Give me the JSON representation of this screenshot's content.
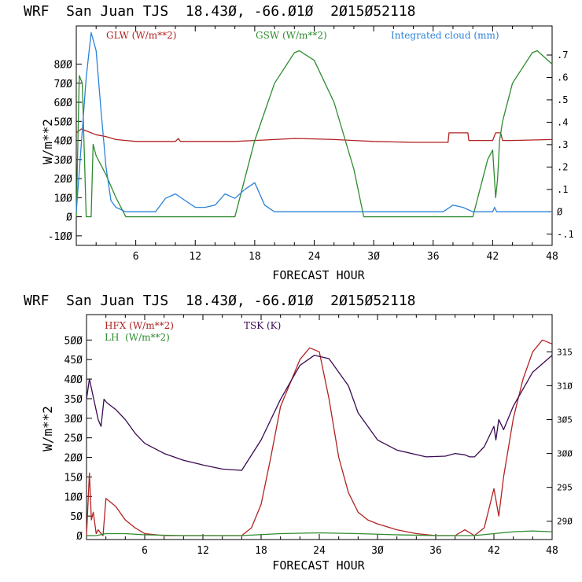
{
  "chart_data": [
    {
      "type": "line",
      "title": "WRF  San Juan TJS  18.43Ø, -66.Ø1Ø  2Ø15Ø52118",
      "xlabel": "FORECAST HOUR",
      "ylabel": "W/m**2",
      "xlim": [
        0,
        48
      ],
      "ylim": [
        -150,
        1000
      ],
      "y2lim": [
        -0.15,
        0.83
      ],
      "x_ticks": [
        6,
        12,
        18,
        24,
        30,
        36,
        42,
        48
      ],
      "x_tick_labels": [
        "6",
        "12",
        "18",
        "24",
        "3Ø",
        "36",
        "42",
        "48"
      ],
      "y_ticks": [
        -100,
        0,
        100,
        200,
        300,
        400,
        500,
        600,
        700,
        800
      ],
      "y_tick_labels": [
        "-1ØØ",
        "Ø",
        "1ØØ",
        "2ØØ",
        "3ØØ",
        "4ØØ",
        "5ØØ",
        "6ØØ",
        "7ØØ",
        "8ØØ"
      ],
      "y2_ticks": [
        -0.1,
        0,
        0.1,
        0.2,
        0.3,
        0.4,
        0.5,
        0.6,
        0.7
      ],
      "y2_tick_labels": [
        "-.1",
        "Ø",
        ".1",
        ".2",
        ".3",
        ".4",
        ".5",
        ".6",
        ".7"
      ],
      "grid": false,
      "legend": "top",
      "series": [
        {
          "name": "GLW (W/m**2)",
          "color": "#b22222",
          "axis": "left",
          "x": [
            0,
            0.5,
            1,
            2,
            3,
            4,
            5,
            6,
            8,
            10,
            10.3,
            10.5,
            12,
            14,
            16,
            18,
            20,
            22,
            24,
            26,
            28,
            30,
            34,
            36,
            37.5,
            37.6,
            39.5,
            39.6,
            40,
            42,
            42.3,
            42.8,
            43,
            44,
            48
          ],
          "y": [
            440,
            460,
            450,
            430,
            420,
            405,
            400,
            395,
            395,
            395,
            410,
            395,
            395,
            395,
            395,
            400,
            405,
            410,
            408,
            405,
            400,
            395,
            390,
            390,
            390,
            440,
            440,
            400,
            400,
            400,
            440,
            440,
            400,
            400,
            405
          ]
        },
        {
          "name": "GSW (W/m**2)",
          "color": "#2e8b2e",
          "axis": "left",
          "x": [
            0,
            0.3,
            0.6,
            1,
            1.5,
            1.7,
            2,
            3,
            4,
            5,
            6,
            16,
            16.5,
            18,
            20,
            22,
            22.5,
            24,
            26,
            28,
            29,
            40,
            40.5,
            41,
            41.5,
            42,
            42.3,
            42.5,
            42.7,
            43,
            44,
            46,
            46.5,
            48
          ],
          "y": [
            0,
            740,
            700,
            0,
            0,
            380,
            320,
            220,
            100,
            0,
            0,
            0,
            100,
            400,
            700,
            860,
            870,
            820,
            600,
            250,
            0,
            0,
            100,
            200,
            300,
            350,
            100,
            200,
            400,
            500,
            700,
            860,
            870,
            800
          ]
        },
        {
          "name": "Integrated cloud (mm)",
          "color": "#2b82d9",
          "axis": "right",
          "x": [
            0,
            0.5,
            1,
            1.5,
            2,
            2.5,
            3,
            3.5,
            4,
            5,
            6,
            8,
            9,
            10,
            11,
            12,
            13,
            14,
            15,
            16,
            17,
            18,
            19,
            20,
            24,
            30,
            37,
            38,
            39,
            40,
            42,
            42.2,
            42.4,
            48
          ],
          "y": [
            0,
            0.3,
            0.6,
            0.8,
            0.72,
            0.45,
            0.2,
            0.05,
            0.02,
            0,
            0,
            0,
            0.06,
            0.08,
            0.05,
            0.02,
            0.02,
            0.03,
            0.08,
            0.06,
            0.1,
            0.13,
            0.03,
            0,
            0,
            0,
            0,
            0.03,
            0.02,
            0,
            0,
            0.02,
            0,
            0
          ]
        }
      ]
    },
    {
      "type": "line",
      "title": "WRF  San Juan TJS  18.43Ø, -66.Ø1Ø  2Ø15Ø52118",
      "xlabel": "FORECAST HOUR",
      "ylabel": "W/m**2",
      "xlim": [
        0,
        48
      ],
      "ylim": [
        -10,
        565
      ],
      "y2lim": [
        287.3,
        320.5
      ],
      "x_ticks": [
        6,
        12,
        18,
        24,
        30,
        36,
        42,
        48
      ],
      "x_tick_labels": [
        "6",
        "12",
        "18",
        "24",
        "3Ø",
        "36",
        "42",
        "48"
      ],
      "y_ticks": [
        0,
        50,
        100,
        150,
        200,
        250,
        300,
        350,
        400,
        450,
        500
      ],
      "y_tick_labels": [
        "Ø",
        "5Ø",
        "1ØØ",
        "15Ø",
        "2ØØ",
        "25Ø",
        "3ØØ",
        "35Ø",
        "4ØØ",
        "45Ø",
        "5ØØ"
      ],
      "y2_ticks": [
        290,
        295,
        300,
        305,
        310,
        315
      ],
      "y2_tick_labels": [
        "29Ø",
        "295",
        "3ØØ",
        "3Ø5",
        "31Ø",
        "315"
      ],
      "grid": false,
      "legend": "top",
      "series": [
        {
          "name": "HFX (W/m**2)",
          "color": "#b22222",
          "axis": "left",
          "x": [
            0,
            0.3,
            0.5,
            0.7,
            1,
            1.2,
            1.5,
            1.7,
            2,
            3,
            4,
            5,
            6,
            8,
            10,
            12,
            14,
            16,
            17,
            18,
            19,
            20,
            22,
            23,
            24,
            25,
            26,
            27,
            28,
            29,
            30,
            32,
            34,
            36,
            38,
            39,
            40,
            41,
            42,
            42.5,
            43,
            44,
            45,
            46,
            47,
            48
          ],
          "y": [
            0,
            160,
            40,
            60,
            5,
            15,
            5,
            0,
            95,
            75,
            40,
            20,
            5,
            0,
            0,
            0,
            0,
            0,
            20,
            80,
            200,
            330,
            450,
            480,
            470,
            350,
            200,
            110,
            60,
            40,
            30,
            15,
            5,
            0,
            0,
            15,
            0,
            20,
            120,
            50,
            150,
            300,
            400,
            470,
            500,
            490
          ]
        },
        {
          "name": "LH  (W/m**2)",
          "color": "#2e8b2e",
          "axis": "left",
          "x": [
            0,
            1,
            2,
            4,
            6,
            10,
            16,
            20,
            24,
            28,
            32,
            36,
            40,
            42,
            44,
            46,
            48
          ],
          "y": [
            0,
            0,
            5,
            5,
            2,
            0,
            0,
            5,
            7,
            5,
            2,
            0,
            0,
            5,
            10,
            12,
            10
          ]
        },
        {
          "name": "TSK (K)",
          "color": "#3a0a52",
          "axis": "right",
          "x": [
            0,
            0.3,
            0.6,
            0.9,
            1.2,
            1.5,
            1.8,
            2.1,
            3,
            4,
            5,
            6,
            8,
            10,
            12,
            14,
            16,
            18,
            20,
            22,
            23.5,
            25,
            27,
            28,
            30,
            32,
            35,
            37,
            38,
            39,
            39.5,
            40,
            41,
            42,
            42.2,
            42.5,
            43,
            44,
            46,
            48
          ],
          "y": [
            308,
            311,
            309,
            307,
            305,
            304,
            308,
            307.5,
            306.5,
            305,
            303,
            301.5,
            300,
            299,
            298.3,
            297.7,
            297.5,
            302,
            308,
            313,
            314.5,
            314,
            310,
            306,
            302,
            300.5,
            299.5,
            299.6,
            300,
            299.8,
            299.5,
            299.5,
            301,
            304,
            302,
            305,
            303.5,
            307,
            312,
            314.5
          ]
        }
      ]
    }
  ]
}
